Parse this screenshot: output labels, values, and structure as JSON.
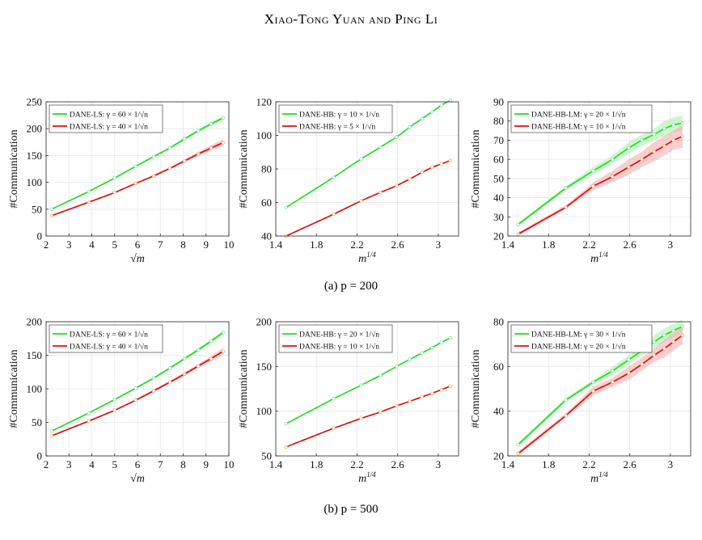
{
  "page": {
    "header": "Xiao-Tong Yuan and Ping Li",
    "captions": [
      "(a) p = 200",
      "(b) p = 500"
    ]
  },
  "colors": {
    "green": "#22dd22",
    "red": "#dd1111",
    "green_band": "#a8f0a8",
    "red_band": "#f2a8a8"
  },
  "chart_data": [
    {
      "type": "line",
      "xlabel": "√m",
      "ylabel": "#Communication",
      "xlim": [
        2,
        10
      ],
      "ylim": [
        0,
        250
      ],
      "xticks": [
        2,
        3,
        4,
        5,
        6,
        7,
        8,
        9,
        10
      ],
      "xtick_labels": [
        "2",
        "3",
        "4",
        "5",
        "6",
        "7",
        "8",
        "9",
        "10"
      ],
      "yticks": [
        0,
        50,
        100,
        150,
        200,
        250
      ],
      "ytick_labels": [
        "0",
        "50",
        "100",
        "150",
        "200",
        "250"
      ],
      "legend": "top-left",
      "grid": true,
      "series": [
        {
          "name": "DANE-LS: γ = 60 × 1/√n",
          "color": "green",
          "x": [
            2.24,
            3.87,
            5.0,
            5.92,
            6.71,
            7.42,
            8.06,
            8.66,
            9.22,
            9.75
          ],
          "y": [
            50,
            83,
            108,
            130,
            148,
            164,
            181,
            196,
            209,
            220
          ],
          "band": [
            1,
            1,
            1,
            1,
            2,
            2,
            3,
            3,
            4,
            5
          ]
        },
        {
          "name": "DANE-LS: γ = 40 × 1/√n",
          "color": "red",
          "x": [
            2.24,
            3.87,
            5.0,
            5.92,
            6.71,
            7.42,
            8.06,
            8.66,
            9.22,
            9.75
          ],
          "y": [
            38,
            63,
            81,
            98,
            112,
            126,
            140,
            153,
            164,
            174
          ],
          "band": [
            1,
            1,
            1,
            1,
            2,
            2,
            3,
            4,
            5,
            6
          ]
        }
      ]
    },
    {
      "type": "line",
      "xlabel": "m^1/4",
      "ylabel": "#Communication",
      "xlim": [
        1.4,
        3.2
      ],
      "ylim": [
        40,
        120
      ],
      "xticks": [
        1.4,
        1.8,
        2.2,
        2.6,
        3.0
      ],
      "xtick_labels": [
        "1.4",
        "1.8",
        "2.2",
        "2.6",
        "3"
      ],
      "yticks": [
        40,
        60,
        80,
        100,
        120
      ],
      "ytick_labels": [
        "40",
        "60",
        "80",
        "100",
        "120"
      ],
      "legend": "top-left",
      "grid": true,
      "series": [
        {
          "name": "DANE-HB: γ = 10 × 1/√n",
          "color": "green",
          "x": [
            1.5,
            1.97,
            2.24,
            2.43,
            2.59,
            2.72,
            2.84,
            2.94,
            3.03,
            3.12
          ],
          "y": [
            57,
            75,
            86,
            93,
            99,
            105,
            110,
            114,
            118,
            121
          ],
          "band": [
            0,
            0,
            0,
            0,
            0,
            0,
            0,
            0,
            0,
            0
          ]
        },
        {
          "name": "DANE-HB: γ = 5 × 1/√n",
          "color": "red",
          "x": [
            1.5,
            1.97,
            2.24,
            2.43,
            2.59,
            2.72,
            2.84,
            2.94,
            3.03,
            3.12
          ],
          "y": [
            40,
            53,
            61,
            66,
            70,
            74,
            78,
            81,
            83,
            85
          ],
          "band": [
            0,
            0,
            0,
            0,
            0,
            0,
            0,
            0,
            0,
            0
          ]
        }
      ]
    },
    {
      "type": "line",
      "xlabel": "m^1/4",
      "ylabel": "#Communication",
      "xlim": [
        1.4,
        3.2
      ],
      "ylim": [
        20,
        90
      ],
      "xticks": [
        1.4,
        1.8,
        2.2,
        2.6,
        3.0
      ],
      "xtick_labels": [
        "1.4",
        "1.8",
        "2.2",
        "2.6",
        "3"
      ],
      "yticks": [
        20,
        30,
        40,
        50,
        60,
        70,
        80,
        90
      ],
      "ytick_labels": [
        "20",
        "30",
        "40",
        "50",
        "60",
        "70",
        "80",
        "90"
      ],
      "legend": "top-left",
      "grid": true,
      "series": [
        {
          "name": "DANE-HB-LM: γ = 20 × 1/√n",
          "color": "green",
          "x": [
            1.5,
            1.97,
            2.24,
            2.43,
            2.59,
            2.72,
            2.84,
            2.94,
            3.03,
            3.12
          ],
          "y": [
            26,
            45,
            54,
            60,
            66,
            70,
            73,
            76,
            78,
            79
          ],
          "band": [
            1,
            1,
            2,
            2,
            3,
            3,
            3,
            4,
            4,
            4
          ]
        },
        {
          "name": "DANE-HB-LM: γ = 10 × 1/√n",
          "color": "red",
          "x": [
            1.5,
            1.97,
            2.24,
            2.43,
            2.59,
            2.72,
            2.84,
            2.94,
            3.03,
            3.12
          ],
          "y": [
            21,
            35,
            46,
            51,
            56,
            60,
            64,
            67,
            70,
            72
          ],
          "band": [
            1,
            1,
            2,
            3,
            4,
            4,
            5,
            5,
            5,
            6
          ]
        }
      ]
    },
    {
      "type": "line",
      "xlabel": "√m",
      "ylabel": "#Communication",
      "xlim": [
        2,
        10
      ],
      "ylim": [
        0,
        200
      ],
      "xticks": [
        2,
        3,
        4,
        5,
        6,
        7,
        8,
        9,
        10
      ],
      "xtick_labels": [
        "2",
        "3",
        "4",
        "5",
        "6",
        "7",
        "8",
        "9",
        "10"
      ],
      "yticks": [
        0,
        50,
        100,
        150,
        200
      ],
      "ytick_labels": [
        "0",
        "50",
        "100",
        "150",
        "200"
      ],
      "legend": "top-left",
      "grid": true,
      "series": [
        {
          "name": "DANE-LS: γ = 60 × 1/√n",
          "color": "green",
          "x": [
            2.24,
            3.87,
            5.0,
            5.92,
            6.71,
            7.42,
            8.06,
            8.66,
            9.22,
            9.75
          ],
          "y": [
            37,
            64,
            84,
            101,
            116,
            131,
            145,
            158,
            171,
            184
          ],
          "band": [
            1,
            1,
            1,
            1,
            2,
            2,
            2,
            3,
            3,
            4
          ]
        },
        {
          "name": "DANE-LS: γ = 40 × 1/√n",
          "color": "red",
          "x": [
            2.24,
            3.87,
            5.0,
            5.92,
            6.71,
            7.42,
            8.06,
            8.66,
            9.22,
            9.75
          ],
          "y": [
            30,
            52,
            68,
            83,
            97,
            110,
            122,
            134,
            145,
            156
          ],
          "band": [
            1,
            1,
            1,
            1,
            2,
            2,
            3,
            3,
            4,
            5
          ]
        }
      ]
    },
    {
      "type": "line",
      "xlabel": "m^1/4",
      "ylabel": "#Communication",
      "xlim": [
        1.4,
        3.2
      ],
      "ylim": [
        50,
        200
      ],
      "xticks": [
        1.4,
        1.8,
        2.2,
        2.6,
        3.0
      ],
      "xtick_labels": [
        "1.4",
        "1.8",
        "2.2",
        "2.6",
        "3"
      ],
      "yticks": [
        50,
        100,
        150,
        200
      ],
      "ytick_labels": [
        "50",
        "100",
        "150",
        "200"
      ],
      "legend": "top-left",
      "grid": true,
      "series": [
        {
          "name": "DANE-HB: γ = 20 × 1/√n",
          "color": "green",
          "x": [
            1.5,
            1.97,
            2.24,
            2.43,
            2.59,
            2.72,
            2.84,
            2.94,
            3.03,
            3.12
          ],
          "y": [
            86,
            114,
            129,
            140,
            150,
            158,
            165,
            171,
            177,
            182
          ],
          "band": [
            0,
            0,
            0,
            0,
            0,
            0,
            0,
            0,
            0,
            0
          ]
        },
        {
          "name": "DANE-HB: γ = 10 × 1/√n",
          "color": "red",
          "x": [
            1.5,
            1.97,
            2.24,
            2.43,
            2.59,
            2.72,
            2.84,
            2.94,
            3.03,
            3.12
          ],
          "y": [
            60,
            81,
            92,
            99,
            106,
            111,
            116,
            120,
            124,
            128
          ],
          "band": [
            0,
            0,
            0,
            0,
            0,
            0,
            0,
            0,
            0,
            0
          ]
        }
      ]
    },
    {
      "type": "line",
      "xlabel": "m^1/4",
      "ylabel": "#Communication",
      "xlim": [
        1.4,
        3.2
      ],
      "ylim": [
        20,
        80
      ],
      "xticks": [
        1.4,
        1.8,
        2.2,
        2.6,
        3.0
      ],
      "xtick_labels": [
        "1.4",
        "1.8",
        "2.2",
        "2.6",
        "3"
      ],
      "yticks": [
        20,
        40,
        60,
        80
      ],
      "ytick_labels": [
        "20",
        "40",
        "60",
        "80"
      ],
      "legend": "top-left",
      "grid": true,
      "series": [
        {
          "name": "DANE-HB-LM: γ = 30 × 1/√n",
          "color": "green",
          "x": [
            1.5,
            1.97,
            2.24,
            2.43,
            2.59,
            2.72,
            2.84,
            2.94,
            3.03,
            3.12
          ],
          "y": [
            25,
            45,
            53,
            58,
            63,
            67,
            71,
            74,
            76,
            78
          ],
          "band": [
            1,
            1,
            1,
            2,
            2,
            2,
            3,
            3,
            3,
            3
          ]
        },
        {
          "name": "DANE-HB-LM: γ = 20 × 1/√n",
          "color": "red",
          "x": [
            1.5,
            1.97,
            2.24,
            2.43,
            2.59,
            2.72,
            2.84,
            2.94,
            3.03,
            3.12
          ],
          "y": [
            21,
            38,
            49,
            53,
            57,
            61,
            65,
            68,
            71,
            74
          ],
          "band": [
            1,
            1,
            2,
            2,
            3,
            3,
            3,
            4,
            4,
            4
          ]
        }
      ]
    }
  ]
}
